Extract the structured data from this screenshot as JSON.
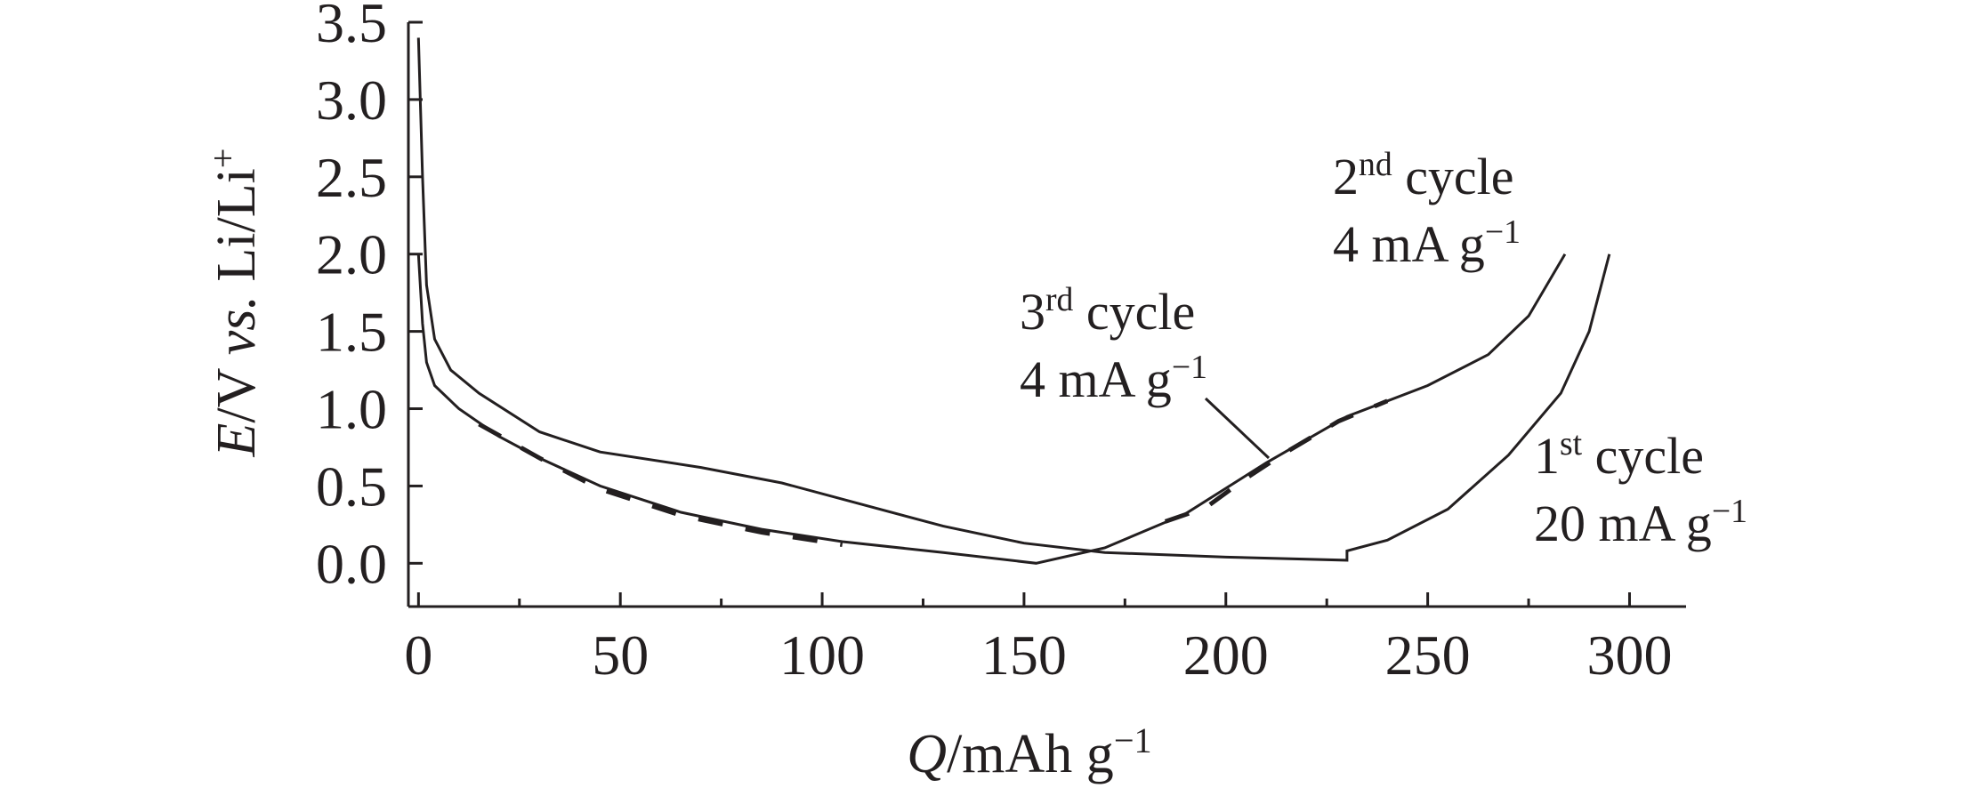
{
  "chart_data": {
    "type": "line",
    "x_label": [
      {
        "text": "Q",
        "style": "italic"
      },
      {
        "text": "/mAh g"
      },
      {
        "text": "−1",
        "style": "sup"
      }
    ],
    "y_label": [
      {
        "text": "E",
        "style": "italic"
      },
      {
        "text": "/V "
      },
      {
        "text": "vs.",
        "style": "italic"
      },
      {
        "text": " Li/Li"
      },
      {
        "text": "+",
        "style": "sup"
      }
    ],
    "xlim": [
      -2.5,
      314
    ],
    "ylim": [
      -0.28,
      3.5
    ],
    "xticks": [
      0,
      50,
      100,
      150,
      200,
      250,
      300
    ],
    "xminorticks": [
      25,
      75,
      125,
      175,
      225,
      275
    ],
    "yticks": [
      {
        "value": 0,
        "label": "0.0"
      },
      {
        "value": 0.5,
        "label": "0.5"
      },
      {
        "value": 1,
        "label": "1.0"
      },
      {
        "value": 1.5,
        "label": "1.5"
      },
      {
        "value": 2,
        "label": "2.0"
      },
      {
        "value": 2.5,
        "label": "2.5"
      },
      {
        "value": 3,
        "label": "3.0"
      },
      {
        "value": 3.5,
        "label": "3.5"
      }
    ],
    "series": [
      {
        "color": "#231f20",
        "dash": false,
        "x": [
          0,
          1,
          2,
          4,
          8,
          15,
          30,
          45,
          70,
          90,
          110,
          130,
          150,
          170,
          200,
          230,
          230,
          240,
          255,
          270,
          283,
          290,
          295
        ],
        "values": [
          3.4,
          2.5,
          1.8,
          1.45,
          1.25,
          1.1,
          0.85,
          0.72,
          0.62,
          0.52,
          0.38,
          0.24,
          0.13,
          0.07,
          0.04,
          0.02,
          0.08,
          0.15,
          0.35,
          0.7,
          1.1,
          1.5,
          2.0
        ]
      },
      {
        "color": "#231f20",
        "dash": false,
        "x": [
          0,
          1,
          2,
          4,
          10,
          20,
          30,
          45,
          65,
          85,
          105,
          130,
          153,
          170,
          190,
          210,
          230,
          250,
          265,
          275,
          284
        ],
        "values": [
          2.0,
          1.55,
          1.3,
          1.15,
          1.0,
          0.82,
          0.68,
          0.5,
          0.33,
          0.22,
          0.14,
          0.07,
          0.0,
          0.1,
          0.32,
          0.65,
          0.95,
          1.15,
          1.35,
          1.6,
          2.0
        ]
      },
      {
        "color": "#231f20",
        "dash": true,
        "x": [
          15,
          30,
          45,
          65,
          85,
          105,
          null,
          185,
          195,
          205,
          215,
          228,
          240
        ],
        "values": [
          0.9,
          0.68,
          0.48,
          0.31,
          0.2,
          0.12,
          null,
          0.27,
          0.36,
          0.55,
          0.72,
          0.92,
          1.05
        ]
      }
    ],
    "annotations": [
      {
        "lines": [
          [
            {
              "text": "2"
            },
            {
              "text": "nd",
              "style": "sup"
            },
            {
              "text": " cycle"
            }
          ],
          [
            {
              "text": "4 mA g"
            },
            {
              "text": "−1",
              "style": "sup"
            }
          ]
        ]
      },
      {
        "lines": [
          [
            {
              "text": "3"
            },
            {
              "text": "rd",
              "style": "sup"
            },
            {
              "text": " cycle"
            }
          ],
          [
            {
              "text": "4 mA g"
            },
            {
              "text": "−1",
              "style": "sup"
            }
          ]
        ]
      },
      {
        "lines": [
          [
            {
              "text": "1"
            },
            {
              "text": "st",
              "style": "sup"
            },
            {
              "text": " cycle"
            }
          ],
          [
            {
              "text": "20 mA g"
            },
            {
              "text": "−1",
              "style": "sup"
            }
          ]
        ]
      }
    ]
  }
}
